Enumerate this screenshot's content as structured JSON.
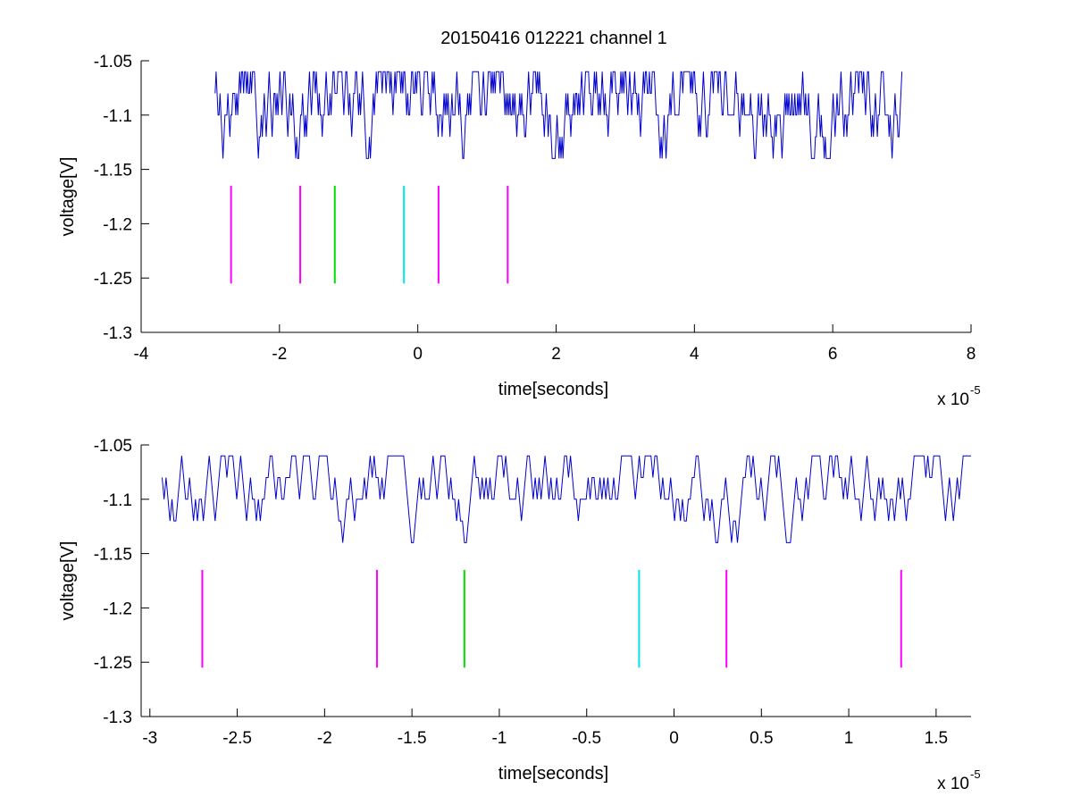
{
  "figure": {
    "title": "20150416 012221 channel 1"
  },
  "chart_data": [
    {
      "type": "line",
      "title": "20150416 012221 channel 1",
      "xlabel": "time[seconds]",
      "ylabel": "voltage[V]",
      "x_exponent_label": "x 10",
      "x_exponent": "-5",
      "xlim": [
        -4,
        8
      ],
      "ylim": [
        -1.3,
        -1.05
      ],
      "xticks": [
        -4,
        -2,
        0,
        2,
        4,
        6,
        8
      ],
      "xtick_labels": [
        "-4",
        "-2",
        "0",
        "2",
        "4",
        "6",
        "8"
      ],
      "yticks": [
        -1.3,
        -1.25,
        -1.2,
        -1.15,
        -1.1,
        -1.05
      ],
      "ytick_labels": [
        "-1.3",
        "-1.25",
        "-1.2",
        "-1.15",
        "-1.1",
        "-1.05"
      ],
      "grid": false,
      "series": [
        {
          "kind": "waveform",
          "color": "#0000cc",
          "x_start": -2.93,
          "x_end": 7.0,
          "levels": [
            -1.06,
            -1.08,
            -1.1,
            -1.12,
            -1.14
          ]
        }
      ],
      "markers": [
        {
          "x": -2.7,
          "color": "#ff00ff",
          "y_from": -1.255,
          "y_to": -1.165
        },
        {
          "x": -1.7,
          "color": "#ff00ff",
          "y_from": -1.255,
          "y_to": -1.165
        },
        {
          "x": -1.2,
          "color": "#00dd00",
          "y_from": -1.255,
          "y_to": -1.165
        },
        {
          "x": -0.2,
          "color": "#00e5e5",
          "y_from": -1.255,
          "y_to": -1.165
        },
        {
          "x": 0.3,
          "color": "#ff00ff",
          "y_from": -1.255,
          "y_to": -1.165
        },
        {
          "x": 1.3,
          "color": "#ff00ff",
          "y_from": -1.255,
          "y_to": -1.165
        }
      ]
    },
    {
      "type": "line",
      "title": "",
      "xlabel": "time[seconds]",
      "ylabel": "voltage[V]",
      "x_exponent_label": "x 10",
      "x_exponent": "-5",
      "xlim": [
        -3.05,
        1.7
      ],
      "ylim": [
        -1.3,
        -1.05
      ],
      "xticks": [
        -3,
        -2.5,
        -2,
        -1.5,
        -1,
        -0.5,
        0,
        0.5,
        1,
        1.5
      ],
      "xtick_labels": [
        "-3",
        "-2.5",
        "-2",
        "-1.5",
        "-1",
        "-0.5",
        "0",
        "0.5",
        "1",
        "1.5"
      ],
      "yticks": [
        -1.3,
        -1.25,
        -1.2,
        -1.15,
        -1.1,
        -1.05
      ],
      "ytick_labels": [
        "-1.3",
        "-1.25",
        "-1.2",
        "-1.15",
        "-1.1",
        "-1.05"
      ],
      "grid": false,
      "series": [
        {
          "kind": "waveform",
          "color": "#0000cc",
          "x_start": -2.93,
          "x_end": 1.7,
          "levels": [
            -1.06,
            -1.08,
            -1.1,
            -1.12,
            -1.14
          ]
        }
      ],
      "markers": [
        {
          "x": -2.7,
          "color": "#ff00ff",
          "y_from": -1.255,
          "y_to": -1.165
        },
        {
          "x": -1.7,
          "color": "#ff00ff",
          "y_from": -1.255,
          "y_to": -1.165
        },
        {
          "x": -1.2,
          "color": "#00dd00",
          "y_from": -1.255,
          "y_to": -1.165
        },
        {
          "x": -0.2,
          "color": "#00e5e5",
          "y_from": -1.255,
          "y_to": -1.165
        },
        {
          "x": 0.3,
          "color": "#ff00ff",
          "y_from": -1.255,
          "y_to": -1.165
        },
        {
          "x": 1.3,
          "color": "#ff00ff",
          "y_from": -1.255,
          "y_to": -1.165
        }
      ]
    }
  ]
}
